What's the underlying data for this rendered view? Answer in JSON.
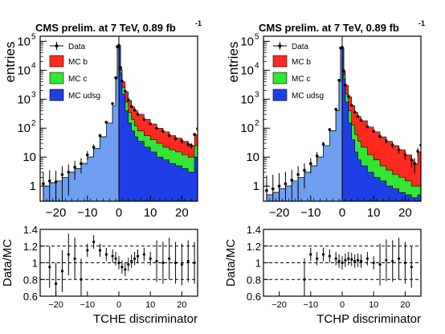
{
  "colors": {
    "mc_b": "#ff2a1f",
    "mc_c": "#33e633",
    "mc_udsg": "#1f3fe6",
    "mc_udsg_left": "#6f9ff0",
    "data": "#000000",
    "frame": "#000000"
  },
  "chart_data": [
    {
      "id": "tche-main",
      "type": "area",
      "title": "CMS prelim. at 7 TeV, 0.89 fb",
      "title_superscript": "-1",
      "ylabel": "entries",
      "xlabel": "",
      "yscale": "log",
      "xlim": [
        -25,
        25
      ],
      "ylim": [
        0.3,
        150000
      ],
      "x_ticks": [
        "-20",
        "-10",
        "0",
        "10",
        "20"
      ],
      "y_ticks": [
        "1",
        "10",
        "10²",
        "10³",
        "10⁴",
        "10⁵"
      ],
      "legend": {
        "placement": "top-left",
        "entries": [
          "Data",
          "MC b",
          "MC c",
          "MC udsg"
        ]
      },
      "x": [
        -24,
        -22,
        -20,
        -18,
        -16,
        -14,
        -12,
        -10,
        -8,
        -6,
        -4,
        -2,
        -1,
        -0.5,
        0,
        0.5,
        1,
        2,
        3,
        4,
        5,
        6,
        8,
        10,
        12,
        14,
        16,
        18,
        20,
        22,
        23,
        24,
        25
      ],
      "series": [
        {
          "name": "MC udsg",
          "values": [
            1,
            1.3,
            1.5,
            2,
            3,
            4,
            6,
            10,
            20,
            50,
            150,
            600,
            5000,
            60000,
            70000,
            8000,
            1500,
            400,
            150,
            80,
            50,
            35,
            22,
            15,
            10,
            8,
            6,
            5,
            4,
            3,
            3,
            10,
            20
          ]
        },
        {
          "name": "MC c",
          "values": [
            1,
            1.3,
            1.5,
            2,
            3,
            4,
            6,
            10,
            20,
            50,
            150,
            600,
            5000,
            60000,
            70000,
            10000,
            2500,
            800,
            350,
            200,
            120,
            80,
            55,
            40,
            30,
            22,
            18,
            15,
            12,
            10,
            10,
            25,
            40
          ]
        },
        {
          "name": "MC b",
          "values": [
            1,
            1.3,
            1.5,
            2,
            3,
            4,
            6,
            10,
            20,
            50,
            150,
            600,
            5000,
            60000,
            70000,
            12000,
            4000,
            1800,
            900,
            550,
            400,
            300,
            200,
            140,
            100,
            75,
            55,
            45,
            35,
            28,
            25,
            60,
            90
          ]
        },
        {
          "name": "Data",
          "values": [
            1.2,
            1.5,
            1.4,
            2.5,
            3,
            4.5,
            6,
            12,
            22,
            55,
            160,
            700,
            5500,
            65000,
            72000,
            12500,
            4200,
            1900,
            950,
            560,
            420,
            300,
            200,
            140,
            100,
            78,
            56,
            44,
            36,
            28,
            25,
            60,
            95
          ]
        }
      ]
    },
    {
      "id": "tchp-main",
      "type": "area",
      "title": "CMS prelim. at 7 TeV, 0.89 fb",
      "title_superscript": "-1",
      "ylabel": "entries",
      "xlabel": "",
      "yscale": "log",
      "xlim": [
        -25,
        25
      ],
      "ylim": [
        0.3,
        150000
      ],
      "x_ticks": [
        "-20",
        "-10",
        "0",
        "10",
        "20"
      ],
      "y_ticks": [
        "1",
        "10",
        "10²",
        "10³",
        "10⁴",
        "10⁵"
      ],
      "legend": {
        "placement": "top-left",
        "entries": [
          "Data",
          "MC b",
          "MC c",
          "MC udsg"
        ]
      },
      "x": [
        -24,
        -22,
        -20,
        -18,
        -16,
        -14,
        -12,
        -10,
        -8,
        -6,
        -4,
        -2,
        -1,
        -0.5,
        0,
        0.5,
        1,
        2,
        3,
        4,
        5,
        6,
        8,
        10,
        12,
        14,
        16,
        18,
        20,
        22,
        23,
        24,
        25
      ],
      "series": [
        {
          "name": "MC udsg",
          "values": [
            0.5,
            0.6,
            0.8,
            1,
            1.5,
            2,
            3,
            5,
            10,
            25,
            80,
            400,
            4000,
            55000,
            60000,
            5000,
            800,
            150,
            40,
            15,
            8,
            5,
            3,
            2,
            1.5,
            1,
            0.8,
            0.6,
            0.5,
            0.4,
            0.4,
            0.5,
            0.5
          ]
        },
        {
          "name": "MC c",
          "values": [
            0.5,
            0.6,
            0.8,
            1,
            1.5,
            2,
            3,
            5,
            10,
            25,
            80,
            400,
            4000,
            55000,
            60000,
            7000,
            1500,
            400,
            130,
            60,
            35,
            22,
            12,
            8,
            5,
            3.5,
            2.5,
            2,
            1.5,
            1,
            1,
            1,
            1
          ]
        },
        {
          "name": "MC b",
          "values": [
            0.5,
            0.6,
            0.8,
            1,
            1.5,
            2,
            3,
            5,
            10,
            25,
            80,
            400,
            4000,
            55000,
            60000,
            9000,
            3000,
            1200,
            600,
            350,
            250,
            180,
            110,
            75,
            50,
            35,
            25,
            18,
            12,
            8,
            6,
            15,
            25
          ]
        },
        {
          "name": "Data",
          "values": [
            0.7,
            0.8,
            1,
            1.2,
            1.6,
            2.5,
            3.5,
            6,
            11,
            28,
            90,
            450,
            4500,
            58000,
            62000,
            9500,
            3100,
            1250,
            620,
            360,
            255,
            185,
            112,
            78,
            52,
            36,
            26,
            18,
            12,
            8,
            6,
            16,
            26
          ]
        }
      ]
    },
    {
      "id": "tche-ratio",
      "type": "scatter",
      "title": "",
      "ylabel": "Data/MC",
      "xlabel": "TCHE discriminator",
      "xlim": [
        -25,
        25
      ],
      "ylim": [
        0.6,
        1.4
      ],
      "x_ticks": [
        "-20",
        "-10",
        "0",
        "10",
        "20"
      ],
      "y_ticks": [
        "0.6",
        "0.8",
        "1",
        "1.2",
        "1.4"
      ],
      "reference_lines": [
        0.8,
        1.0,
        1.2
      ],
      "x": [
        -22,
        -20,
        -18,
        -16,
        -14,
        -12,
        -10,
        -8,
        -6,
        -4,
        -2,
        -1,
        0,
        1,
        2,
        3,
        4,
        5,
        6,
        8,
        10,
        12,
        14,
        16,
        18,
        20,
        22,
        24
      ],
      "values": [
        0.95,
        0.75,
        0.9,
        1.1,
        1.05,
        0.8,
        1.15,
        1.25,
        1.15,
        1.1,
        1.08,
        1.05,
        1.0,
        0.95,
        0.92,
        0.98,
        1.02,
        1.05,
        1.08,
        1.1,
        1.05,
        1.02,
        1.0,
        1.05,
        1.0,
        0.98,
        1.02,
        1.0
      ]
    },
    {
      "id": "tchp-ratio",
      "type": "scatter",
      "title": "",
      "ylabel": "Data/MC",
      "xlabel": "TCHP discriminator",
      "xlim": [
        -25,
        25
      ],
      "ylim": [
        0.6,
        1.4
      ],
      "x_ticks": [
        "-20",
        "-10",
        "0",
        "10",
        "20"
      ],
      "y_ticks": [
        "0.6",
        "0.8",
        "1",
        "1.2",
        "1.4"
      ],
      "reference_lines": [
        0.8,
        1.0,
        1.2
      ],
      "x": [
        -12,
        -10,
        -8,
        -6,
        -4,
        -2,
        -1,
        0,
        1,
        2,
        3,
        4,
        5,
        6,
        8,
        10,
        12,
        14,
        16,
        18,
        20,
        22
      ],
      "values": [
        0.8,
        1.1,
        1.05,
        1.1,
        1.08,
        1.05,
        1.02,
        1.0,
        1.03,
        1.05,
        1.04,
        1.02,
        1.03,
        1.02,
        1.05,
        1.0,
        0.98,
        1.03,
        1.02,
        1.05,
        1.0,
        0.95
      ]
    }
  ]
}
